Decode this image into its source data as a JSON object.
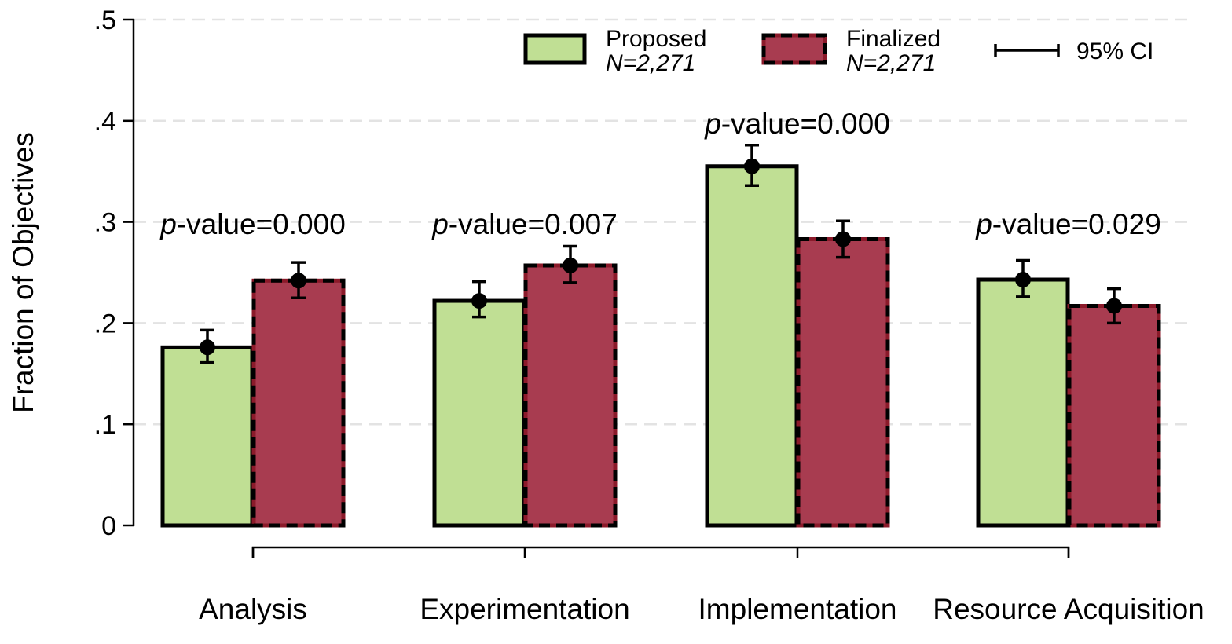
{
  "chart_data": {
    "type": "bar",
    "title": "",
    "xlabel": "",
    "ylabel": "Fraction of Objectives",
    "ylim": [
      0,
      0.5
    ],
    "yticks": [
      {
        "value": 0,
        "label": "0"
      },
      {
        "value": 0.1,
        "label": ".1"
      },
      {
        "value": 0.2,
        "label": ".2"
      },
      {
        "value": 0.3,
        "label": ".3"
      },
      {
        "value": 0.4,
        "label": ".4"
      },
      {
        "value": 0.5,
        "label": ".5"
      }
    ],
    "grid": true,
    "categories": [
      "Analysis",
      "Experimentation",
      "Implementation",
      "Resource Acquisition"
    ],
    "series": [
      {
        "name": "Proposed",
        "sublabel": "N=2,271",
        "color": "#c0df94",
        "border": "#000000",
        "border_style": "solid",
        "values": [
          0.176,
          0.222,
          0.355,
          0.243
        ],
        "ci_low": [
          0.161,
          0.206,
          0.336,
          0.226
        ],
        "ci_high": [
          0.193,
          0.241,
          0.376,
          0.262
        ]
      },
      {
        "name": "Finalized",
        "sublabel": "N=2,271",
        "color": "#a83c50",
        "border": "#000000",
        "border_style": "dashed",
        "values": [
          0.242,
          0.257,
          0.283,
          0.217
        ],
        "ci_low": [
          0.225,
          0.24,
          0.265,
          0.2
        ],
        "ci_high": [
          0.26,
          0.276,
          0.301,
          0.234
        ]
      }
    ],
    "annotations": [
      "p-value=0.000",
      "p-value=0.007",
      "p-value=0.000",
      "p-value=0.029"
    ],
    "legend": {
      "placement": "top-right",
      "ci_label": "95% CI"
    }
  }
}
